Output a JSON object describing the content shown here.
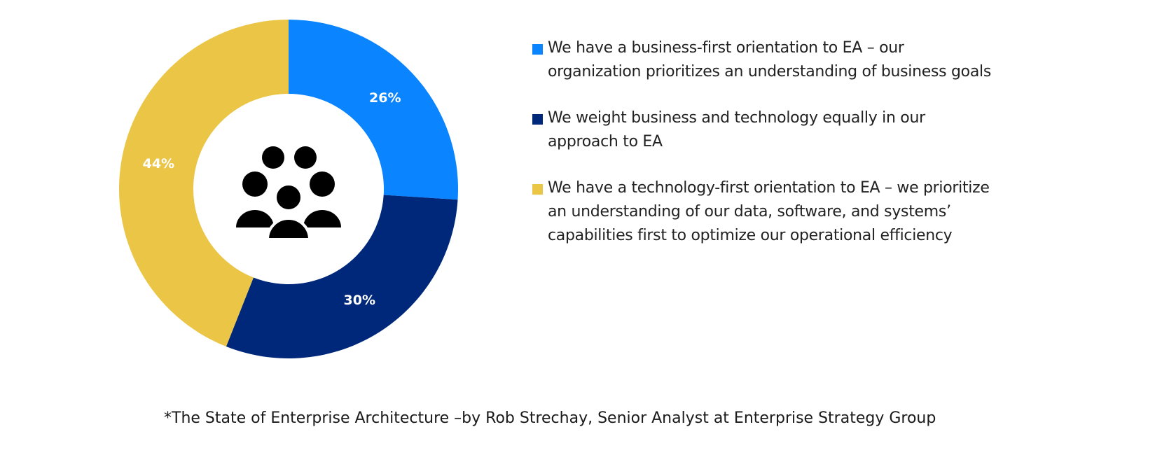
{
  "chart_data": {
    "type": "pie",
    "categories": [
      "We have a business-first orientation to EA – our organization prioritizes an understanding of business goals",
      "We weight business and technology equally in our approach to EA",
      "We have a technology-first orientation to EA – we prioritize an understanding of our data, software, and systems' capabilities first to optimize our operational efficiency"
    ],
    "values": [
      26,
      30,
      44
    ],
    "value_labels": [
      "26%",
      "30%",
      "44%"
    ],
    "colors": [
      "#0a84ff",
      "#00287a",
      "#ebc545"
    ],
    "donut": true,
    "center_icon": "group-of-people-icon",
    "legend_position": "right",
    "title": ""
  },
  "legend": {
    "items": [
      {
        "text": "We have a business-first orientation to EA – our\norganization prioritizes an understanding of business goals",
        "color": "#0a84ff"
      },
      {
        "text": "We weight business and technology equally in our\napproach to EA",
        "color": "#00287a"
      },
      {
        "text": "We have a technology-first orientation to EA – we prioritize\nan understanding of our data, software, and systems’\ncapabilities first to optimize our operational efficiency",
        "color": "#ebc545"
      }
    ]
  },
  "footnote": "*The State of Enterprise Architecture –by Rob Strechay, Senior Analyst at Enterprise Strategy Group"
}
